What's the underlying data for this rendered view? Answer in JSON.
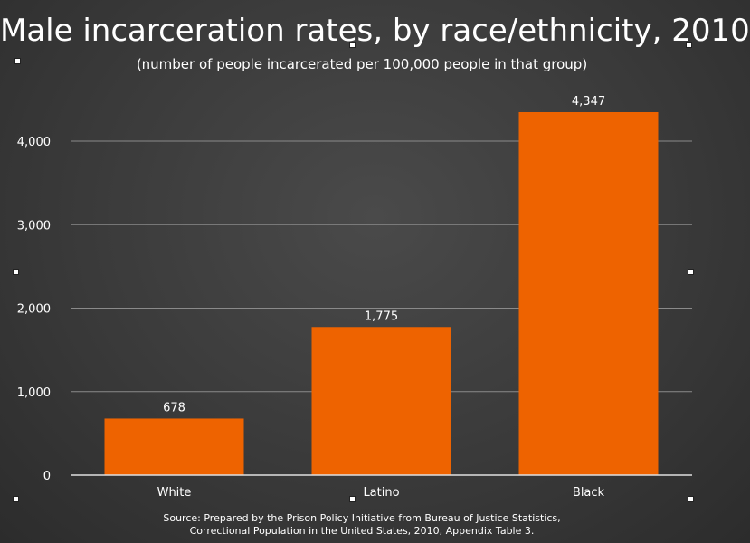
{
  "chart_data": {
    "type": "bar",
    "title": "Male incarceration rates, by race/ethnicity, 2010",
    "subtitle": "(number of people incarcerated per 100,000 people in that group)",
    "categories": [
      "White",
      "Latino",
      "Black"
    ],
    "values": [
      678,
      1775,
      4347
    ],
    "data_labels": [
      "678",
      "1,775",
      "4,347"
    ],
    "y_ticks": [
      0,
      1000,
      2000,
      3000,
      4000
    ],
    "y_tick_labels": [
      "0",
      "1,000",
      "2,000",
      "3,000",
      "4,000"
    ],
    "ylim": [
      0,
      4500
    ],
    "xlabel": "",
    "ylabel": "",
    "grid": true,
    "bar_color": "#ee6300",
    "source_line_1": "Source: Prepared by the Prison Policy Initiative from Bureau of Justice Statistics,",
    "source_line_2": "Correctional Population in the United States, 2010, Appendix Table 3."
  }
}
